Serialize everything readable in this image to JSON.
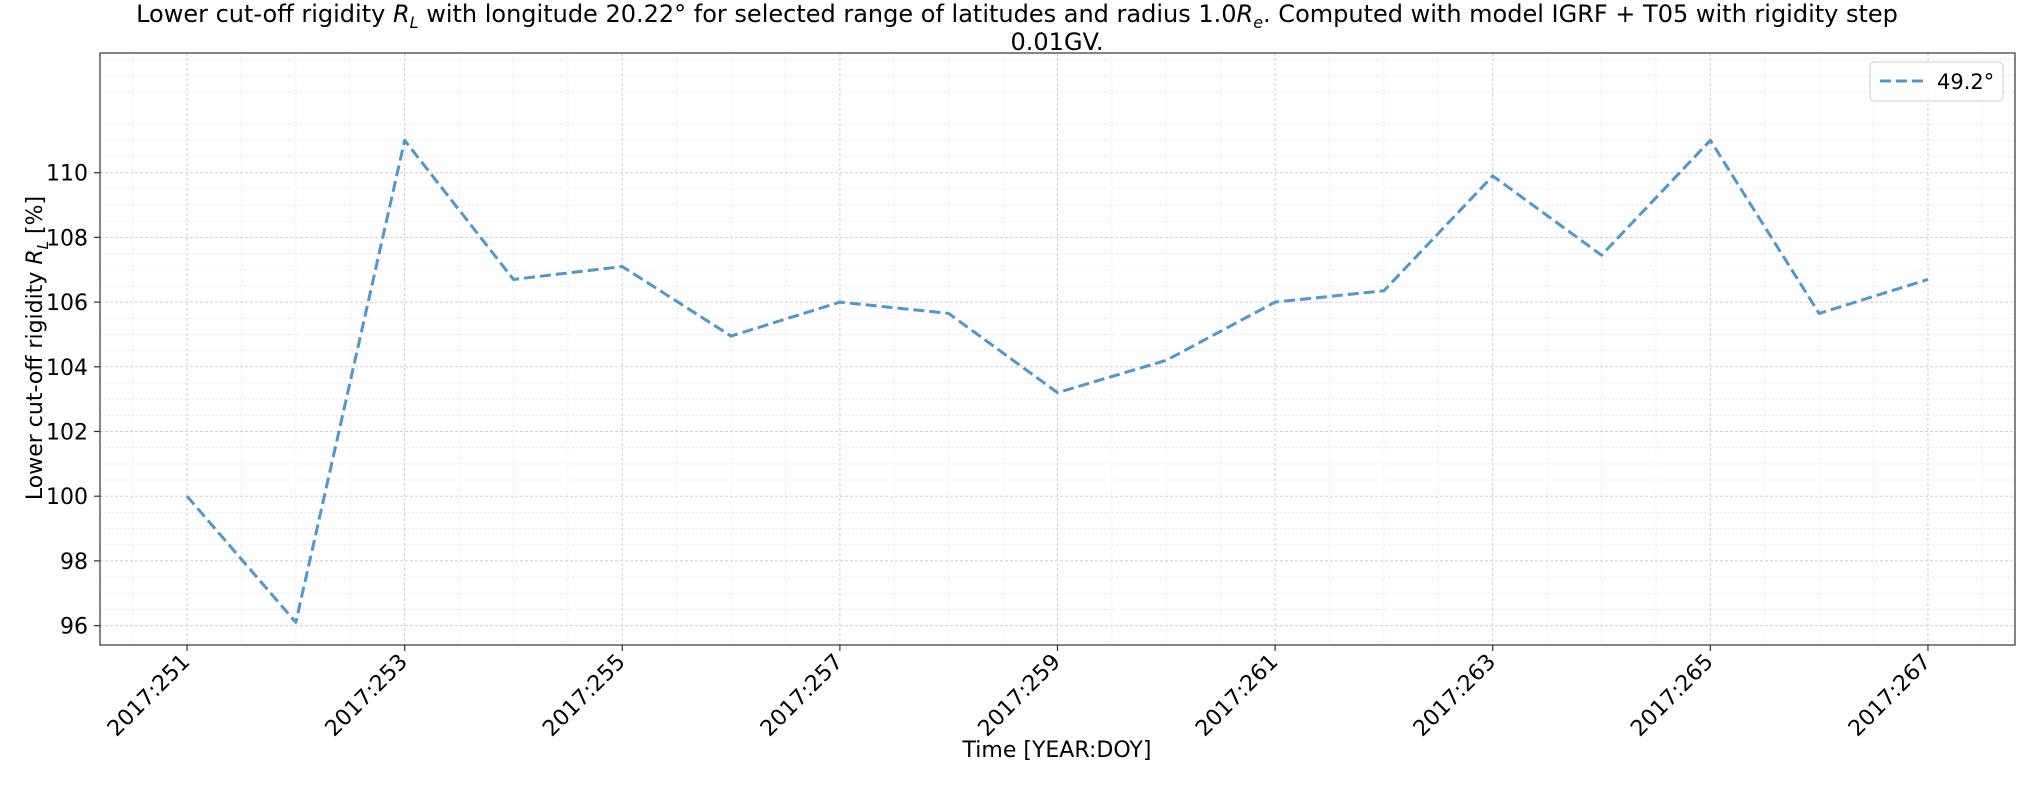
{
  "chart_data": {
    "type": "line",
    "title": {
      "line1_pre": "Lower cut-off rigidity ",
      "line1_mid": " with longitude 20.22° for selected range of latitudes and radius 1.0",
      "line1_post": ". Computed with model IGRF + T05 with rigidity step",
      "line2": "0.01GV."
    },
    "symbols": {
      "R": "R",
      "L": "L",
      "e": "e"
    },
    "xlabel": "Time [YEAR:DOY]",
    "ylabel_pre": "Lower cut-off rigidity ",
    "ylabel_post": " [%]",
    "ylim": [
      95.4,
      113.7
    ],
    "yticks": [
      96,
      98,
      100,
      102,
      104,
      106,
      108,
      110
    ],
    "xlim": [
      250.2,
      267.8
    ],
    "xticks": [
      251,
      253,
      255,
      257,
      259,
      261,
      263,
      265,
      267
    ],
    "xtick_labels": [
      "2017:251",
      "2017:253",
      "2017:255",
      "2017:257",
      "2017:259",
      "2017:261",
      "2017:263",
      "2017:265",
      "2017:267"
    ],
    "grid": true,
    "legend_position": "upper-right",
    "series": [
      {
        "name": "49.2°",
        "color": "#4f98c9",
        "dash": "dashed",
        "x": [
          251,
          252,
          253,
          254,
          255,
          256,
          257,
          258,
          259,
          260,
          261,
          262,
          263,
          264,
          265,
          266,
          267
        ],
        "values": [
          100.0,
          96.1,
          111.0,
          106.7,
          107.1,
          104.95,
          106.0,
          105.65,
          103.2,
          104.2,
          106.0,
          106.35,
          109.9,
          107.45,
          111.0,
          105.65,
          106.7
        ]
      }
    ]
  }
}
